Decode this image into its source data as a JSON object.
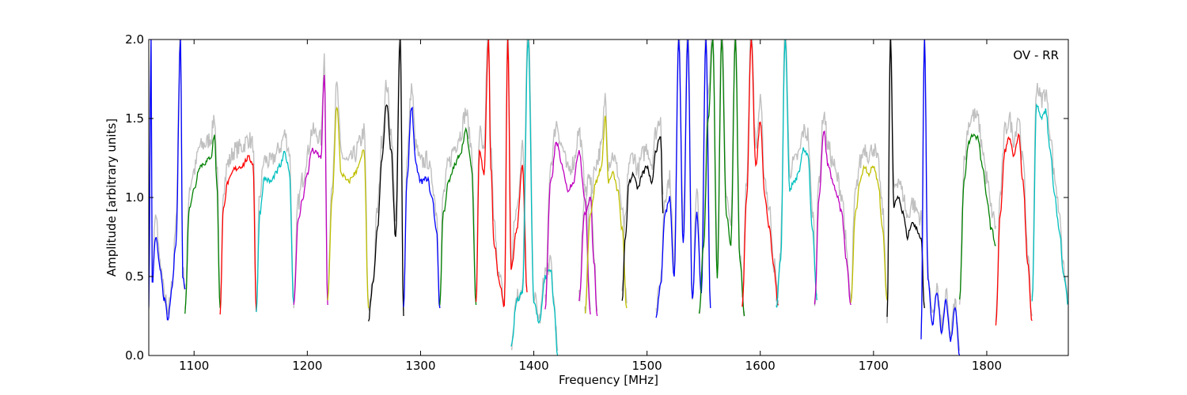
{
  "chart_data": {
    "type": "line",
    "annotation": "OV - RR",
    "xlabel": "Frequency [MHz]",
    "ylabel": "Amplitude [arbitrary units]",
    "xlim": [
      1060,
      1872
    ],
    "ylim": [
      0.0,
      2.0
    ],
    "xticks": [
      1100,
      1200,
      1300,
      1400,
      1500,
      1600,
      1700,
      1800
    ],
    "yticks": [
      0.0,
      0.5,
      1.0,
      1.5,
      2.0
    ],
    "xtick_labels": [
      "1100",
      "1200",
      "1300",
      "1400",
      "1500",
      "1600",
      "1700",
      "1800"
    ],
    "ytick_labels": [
      "0.0",
      "0.5",
      "1.0",
      "1.5",
      "2.0"
    ],
    "grid": false,
    "background_color": "#c0c0c0",
    "colors": [
      "#0000ff",
      "#008000",
      "#ff0000",
      "#00bfbf",
      "#bf00bf",
      "#bfbf00",
      "#000000"
    ],
    "subbands": [
      {
        "color": "#0000ff",
        "x": [
          1060,
          1062,
          1063,
          1066,
          1070,
          1074,
          1077,
          1080,
          1084,
          1088,
          1090,
          1092
        ],
        "y": [
          0.32,
          2.0,
          0.45,
          0.75,
          0.55,
          0.35,
          0.22,
          0.4,
          0.7,
          2.0,
          0.5,
          0.42
        ]
      },
      {
        "color": "#008000",
        "x": [
          1092,
          1096,
          1100,
          1105,
          1110,
          1115,
          1118,
          1120,
          1123
        ],
        "y": [
          0.28,
          0.95,
          1.05,
          1.2,
          1.22,
          1.26,
          1.4,
          1.1,
          0.3
        ]
      },
      {
        "color": "#ff0000",
        "x": [
          1123,
          1126,
          1130,
          1136,
          1142,
          1148,
          1152,
          1155
        ],
        "y": [
          0.27,
          0.95,
          1.1,
          1.18,
          1.2,
          1.25,
          1.22,
          0.28
        ]
      },
      {
        "color": "#00bfbf",
        "x": [
          1155,
          1158,
          1162,
          1168,
          1172,
          1176,
          1180,
          1184,
          1188
        ],
        "y": [
          0.28,
          0.9,
          1.12,
          1.1,
          1.15,
          1.2,
          1.28,
          1.18,
          0.33
        ]
      },
      {
        "color": "#bf00bf",
        "x": [
          1188,
          1192,
          1196,
          1200,
          1204,
          1208,
          1212,
          1215,
          1218
        ],
        "y": [
          0.32,
          0.85,
          1.0,
          1.15,
          1.3,
          1.28,
          1.25,
          1.78,
          0.32
        ]
      },
      {
        "color": "#bfbf00",
        "x": [
          1218,
          1222,
          1226,
          1230,
          1236,
          1242,
          1246,
          1250,
          1254
        ],
        "y": [
          0.35,
          1.0,
          1.58,
          1.15,
          1.1,
          1.15,
          1.22,
          1.3,
          0.3
        ]
      },
      {
        "color": "#000000",
        "x": [
          1254,
          1258,
          1262,
          1266,
          1270,
          1274,
          1278,
          1282,
          1285
        ],
        "y": [
          0.23,
          0.45,
          0.8,
          1.25,
          1.6,
          1.3,
          0.75,
          2.0,
          0.25
        ]
      },
      {
        "color": "#0000ff",
        "x": [
          1285,
          1288,
          1292,
          1296,
          1300,
          1306,
          1310,
          1314,
          1317
        ],
        "y": [
          0.3,
          1.1,
          1.58,
          1.2,
          1.1,
          1.12,
          1.0,
          0.8,
          0.3
        ]
      },
      {
        "color": "#008000",
        "x": [
          1317,
          1320,
          1325,
          1330,
          1335,
          1340,
          1345,
          1349
        ],
        "y": [
          0.32,
          0.9,
          1.1,
          1.2,
          1.28,
          1.42,
          1.2,
          0.32
        ]
      },
      {
        "color": "#ff0000",
        "x": [
          1349,
          1352,
          1356,
          1360,
          1362,
          1365,
          1370,
          1374,
          1377,
          1380,
          1385,
          1390,
          1394
        ],
        "y": [
          0.33,
          1.3,
          1.15,
          2.0,
          1.2,
          0.7,
          0.45,
          0.3,
          2.0,
          0.55,
          0.8,
          1.2,
          0.4
        ]
      },
      {
        "color": "#00bfbf",
        "x": [
          1380,
          1385,
          1390,
          1395,
          1400,
          1405,
          1410,
          1415,
          1418,
          1421
        ],
        "y": [
          0.05,
          0.35,
          0.4,
          2.0,
          0.35,
          0.2,
          0.5,
          0.55,
          0.3,
          0.0
        ]
      },
      {
        "color": "#bf00bf",
        "x": [
          1410,
          1415,
          1420,
          1425,
          1430,
          1435,
          1440,
          1445,
          1450
        ],
        "y": [
          0.3,
          1.1,
          1.35,
          1.2,
          1.05,
          1.1,
          1.3,
          1.0,
          0.26
        ]
      },
      {
        "color": "#bf00bf",
        "x": [
          1440,
          1445,
          1450,
          1453,
          1456
        ],
        "y": [
          0.35,
          0.9,
          1.0,
          0.6,
          0.25
        ]
      },
      {
        "color": "#bfbf00",
        "x": [
          1445,
          1450,
          1455,
          1460,
          1463,
          1466,
          1470,
          1474,
          1478,
          1482
        ],
        "y": [
          0.26,
          0.9,
          1.1,
          1.2,
          1.52,
          1.1,
          1.15,
          1.05,
          0.8,
          0.3
        ]
      },
      {
        "color": "#000000",
        "x": [
          1478,
          1481,
          1484,
          1488,
          1492,
          1496,
          1500,
          1504,
          1508,
          1512,
          1514
        ],
        "y": [
          0.35,
          0.75,
          1.1,
          1.15,
          1.05,
          1.15,
          1.2,
          1.1,
          1.3,
          1.4,
          0.9
        ]
      },
      {
        "color": "#0000ff",
        "x": [
          1508,
          1512,
          1516,
          1520,
          1524,
          1528,
          1532,
          1536,
          1540,
          1544,
          1548,
          1552,
          1556
        ],
        "y": [
          0.25,
          0.45,
          0.9,
          1.0,
          0.5,
          2.0,
          0.7,
          2.0,
          0.35,
          0.9,
          0.4,
          2.0,
          0.3
        ]
      },
      {
        "color": "#008000",
        "x": [
          1546,
          1550,
          1554,
          1558,
          1562,
          1566,
          1570,
          1574,
          1578,
          1582,
          1586
        ],
        "y": [
          0.25,
          0.7,
          1.5,
          2.0,
          0.5,
          2.0,
          0.9,
          0.7,
          2.0,
          0.6,
          0.25
        ]
      },
      {
        "color": "#ff0000",
        "x": [
          1584,
          1588,
          1592,
          1596,
          1600,
          1604,
          1608,
          1612,
          1616
        ],
        "y": [
          0.3,
          1.0,
          2.0,
          1.2,
          1.48,
          1.0,
          0.8,
          0.55,
          0.32
        ]
      },
      {
        "color": "#00bfbf",
        "x": [
          1614,
          1618,
          1622,
          1626,
          1630,
          1634,
          1638,
          1642,
          1646,
          1650
        ],
        "y": [
          0.3,
          0.6,
          2.0,
          1.05,
          1.1,
          1.15,
          1.3,
          1.28,
          0.8,
          0.35
        ]
      },
      {
        "color": "#bf00bf",
        "x": [
          1648,
          1652,
          1656,
          1660,
          1664,
          1668,
          1672,
          1676,
          1680
        ],
        "y": [
          0.32,
          1.0,
          1.42,
          1.2,
          1.1,
          1.0,
          0.9,
          0.6,
          0.32
        ]
      },
      {
        "color": "#bfbf00",
        "x": [
          1680,
          1684,
          1688,
          1692,
          1696,
          1700,
          1704,
          1708,
          1712
        ],
        "y": [
          0.32,
          0.9,
          1.1,
          1.2,
          1.15,
          1.2,
          1.1,
          0.8,
          0.35
        ]
      },
      {
        "color": "#000000",
        "x": [
          1712,
          1715,
          1718,
          1722,
          1726,
          1730,
          1734,
          1738,
          1742,
          1745
        ],
        "y": [
          0.23,
          2.0,
          0.95,
          1.0,
          0.9,
          0.75,
          0.85,
          0.8,
          0.75,
          0.3
        ]
      },
      {
        "color": "#0000ff",
        "x": [
          1742,
          1745,
          1748,
          1752,
          1756,
          1760,
          1764,
          1768,
          1772,
          1776
        ],
        "y": [
          0.1,
          2.0,
          0.5,
          0.2,
          0.4,
          0.15,
          0.35,
          0.1,
          0.3,
          0.0
        ]
      },
      {
        "color": "#008000",
        "x": [
          1776,
          1780,
          1784,
          1788,
          1792,
          1796,
          1800,
          1804,
          1808
        ],
        "y": [
          0.35,
          1.1,
          1.35,
          1.4,
          1.38,
          1.2,
          1.0,
          0.8,
          0.7
        ]
      },
      {
        "color": "#ff0000",
        "x": [
          1808,
          1812,
          1816,
          1820,
          1824,
          1828,
          1832,
          1836,
          1840
        ],
        "y": [
          0.2,
          0.9,
          1.3,
          1.38,
          1.25,
          1.4,
          1.1,
          0.6,
          0.22
        ]
      },
      {
        "color": "#00bfbf",
        "x": [
          1840,
          1844,
          1848,
          1852,
          1856,
          1860,
          1864,
          1868,
          1872
        ],
        "y": [
          0.33,
          1.6,
          1.5,
          1.55,
          1.3,
          1.0,
          0.8,
          0.5,
          0.33
        ]
      }
    ]
  }
}
